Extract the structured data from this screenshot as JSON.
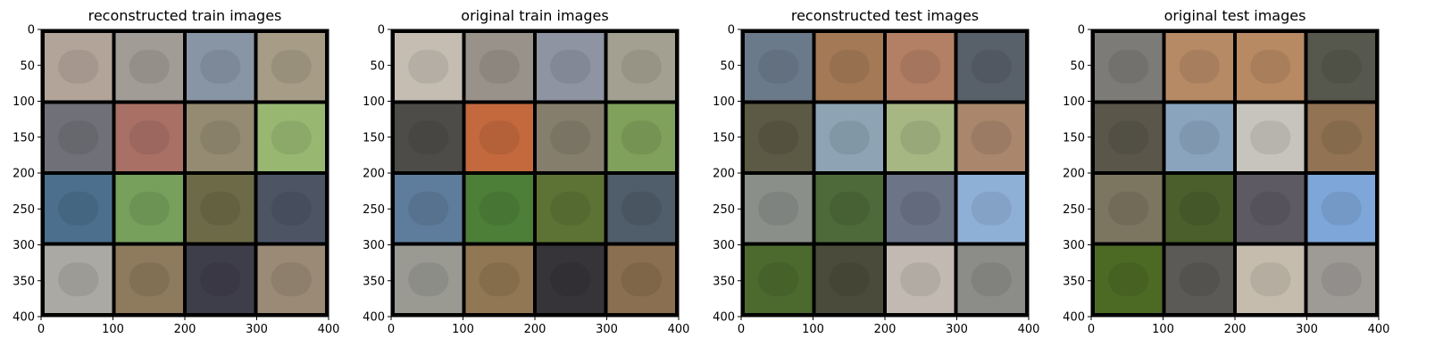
{
  "colors": {
    "frame": "#000000",
    "tick": "#000000",
    "text": "#000000"
  },
  "chart_data": [
    {
      "type": "image-grid",
      "title": "reconstructed train images",
      "xlim": [
        0,
        400
      ],
      "ylim": [
        400,
        0
      ],
      "xticks": [
        0,
        100,
        200,
        300,
        400
      ],
      "yticks": [
        0,
        50,
        100,
        150,
        200,
        250,
        300,
        350,
        400
      ],
      "grid": "4x4",
      "tiles": [
        [
          "#b3a49a",
          "#a29c96",
          "#8895a5",
          "#a79d87"
        ],
        [
          "#707078",
          "#a97066",
          "#958b72",
          "#98b872"
        ],
        [
          "#4b6f8c",
          "#76a05c",
          "#6d6a47",
          "#4d5565"
        ],
        [
          "#aaa9a3",
          "#8e7a5c",
          "#3e3d4a",
          "#9a8a76"
        ]
      ]
    },
    {
      "type": "image-grid",
      "title": "original train images",
      "xlim": [
        0,
        400
      ],
      "ylim": [
        400,
        0
      ],
      "xticks": [
        0,
        100,
        200,
        300,
        400
      ],
      "yticks": [
        0,
        50,
        100,
        150,
        200,
        250,
        300,
        350,
        400
      ],
      "grid": "4x4",
      "tiles": [
        [
          "#c5bdb2",
          "#99928a",
          "#8e94a2",
          "#a4a091"
        ],
        [
          "#4e4c49",
          "#c4693e",
          "#857e6d",
          "#7fa15b"
        ],
        [
          "#5e7c9b",
          "#4d7f39",
          "#5d7335",
          "#505d6a"
        ],
        [
          "#9a9a93",
          "#917753",
          "#363438",
          "#8a6f50"
        ]
      ]
    },
    {
      "type": "image-grid",
      "title": "reconstructed test images",
      "xlim": [
        0,
        400
      ],
      "ylim": [
        400,
        0
      ],
      "xticks": [
        0,
        100,
        200,
        300,
        400
      ],
      "yticks": [
        0,
        50,
        100,
        150,
        200,
        250,
        300,
        350,
        400
      ],
      "grid": "4x4",
      "tiles": [
        [
          "#6b7a8a",
          "#a47a56",
          "#b48065",
          "#58606a"
        ],
        [
          "#5c5a44",
          "#8ea4b5",
          "#a6b784",
          "#a9866c"
        ],
        [
          "#8a8f8a",
          "#4e6a3a",
          "#6c7488",
          "#8fb0d6"
        ],
        [
          "#4d6a2e",
          "#4a4b3a",
          "#c2bab2",
          "#8c8c88"
        ]
      ]
    },
    {
      "type": "image-grid",
      "title": "original test images",
      "xlim": [
        0,
        400
      ],
      "ylim": [
        400,
        0
      ],
      "xticks": [
        0,
        100,
        200,
        300,
        400
      ],
      "yticks": [
        0,
        50,
        100,
        150,
        200,
        250,
        300,
        350,
        400
      ],
      "grid": "4x4",
      "tiles": [
        [
          "#7c7b78",
          "#b78a66",
          "#b88a63",
          "#56584e"
        ],
        [
          "#5a564a",
          "#8aa4be",
          "#c6c4bc",
          "#927353"
        ],
        [
          "#7c7560",
          "#4a5f2c",
          "#5e5a63",
          "#7ea6d8"
        ],
        [
          "#4d6a25",
          "#5b5a56",
          "#c5bcae",
          "#9e9b97"
        ]
      ]
    }
  ]
}
